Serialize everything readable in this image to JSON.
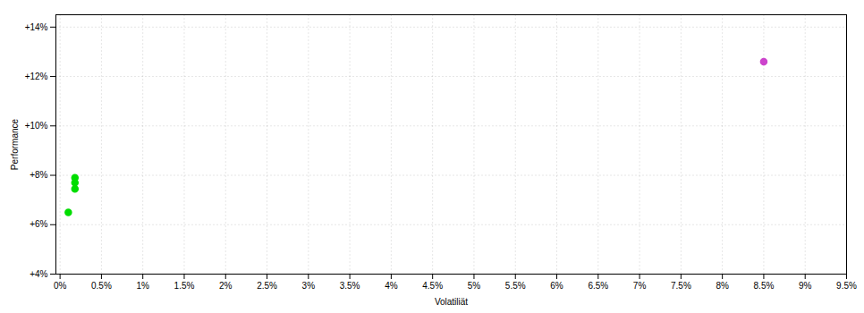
{
  "chart_data": {
    "type": "scatter",
    "xlabel": "Volatiliät",
    "ylabel": "Performance",
    "xlim": [
      -0.0005,
      0.095
    ],
    "ylim": [
      0.04,
      0.145
    ],
    "xticks": [
      {
        "value": 0.0,
        "label": "0%"
      },
      {
        "value": 0.005,
        "label": "0.5%"
      },
      {
        "value": 0.01,
        "label": "1%"
      },
      {
        "value": 0.015,
        "label": "1.5%"
      },
      {
        "value": 0.02,
        "label": "2%"
      },
      {
        "value": 0.025,
        "label": "2.5%"
      },
      {
        "value": 0.03,
        "label": "3%"
      },
      {
        "value": 0.035,
        "label": "3.5%"
      },
      {
        "value": 0.04,
        "label": "4%"
      },
      {
        "value": 0.045,
        "label": "4.5%"
      },
      {
        "value": 0.05,
        "label": "5%"
      },
      {
        "value": 0.055,
        "label": "5.5%"
      },
      {
        "value": 0.06,
        "label": "6%"
      },
      {
        "value": 0.065,
        "label": "6.5%"
      },
      {
        "value": 0.07,
        "label": "7%"
      },
      {
        "value": 0.075,
        "label": "7.5%"
      },
      {
        "value": 0.08,
        "label": "8%"
      },
      {
        "value": 0.085,
        "label": "8.5%"
      },
      {
        "value": 0.09,
        "label": "9%"
      },
      {
        "value": 0.095,
        "label": "9.5%"
      }
    ],
    "yticks": [
      {
        "value": 0.04,
        "label": "+4%"
      },
      {
        "value": 0.06,
        "label": "+6%"
      },
      {
        "value": 0.08,
        "label": "+8%"
      },
      {
        "value": 0.1,
        "label": "+10%"
      },
      {
        "value": 0.12,
        "label": "+12%"
      },
      {
        "value": 0.14,
        "label": "+14%"
      }
    ],
    "grid": true,
    "marker": "circle",
    "series": [
      {
        "color": "#00dd00",
        "x": [
          0.0018,
          0.0018,
          0.0018,
          0.001
        ],
        "values": [
          0.079,
          0.077,
          0.0745,
          0.065
        ]
      },
      {
        "color": "#cc44cc",
        "x": [
          0.085
        ],
        "values": [
          0.126
        ]
      }
    ]
  }
}
